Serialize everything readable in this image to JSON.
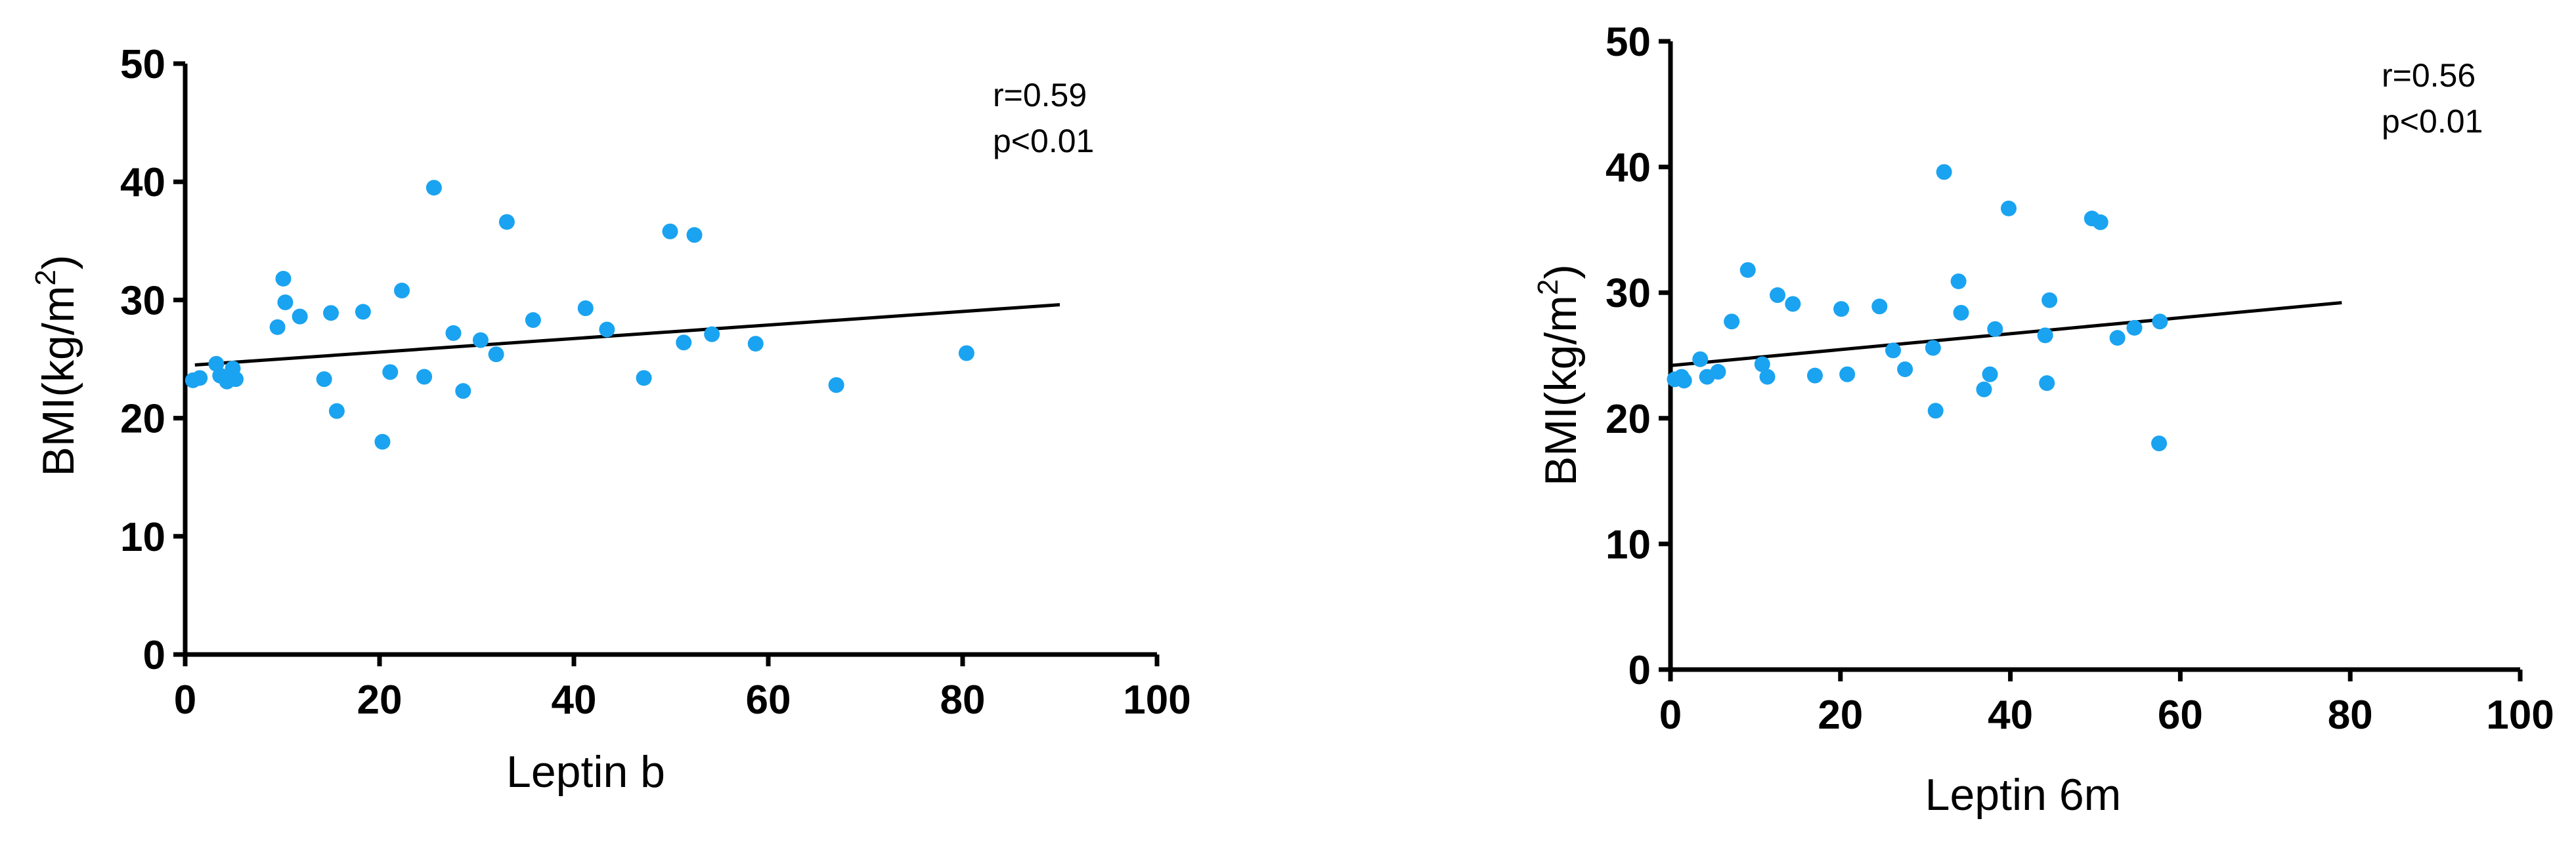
{
  "chart_data": [
    {
      "type": "scatter",
      "title": "",
      "xlabel": "Leptin b",
      "ylabel": "BMI(kg/m",
      "ylabel_superscript": "2",
      "ylabel_suffix": ")",
      "xlim": [
        0,
        100
      ],
      "ylim": [
        0,
        50
      ],
      "xticks": [
        0,
        20,
        40,
        60,
        80,
        100
      ],
      "yticks": [
        0,
        10,
        20,
        30,
        40,
        50
      ],
      "grid": false,
      "annotations": [
        "r=0.59",
        "p<0.01"
      ],
      "point_color": "#1aa3f0",
      "line_color": "#000000",
      "points": [
        {
          "x": 0.8,
          "y": 23.2
        },
        {
          "x": 1.5,
          "y": 23.4
        },
        {
          "x": 3.2,
          "y": 24.6
        },
        {
          "x": 3.6,
          "y": 23.6
        },
        {
          "x": 4.3,
          "y": 23.1
        },
        {
          "x": 4.9,
          "y": 24.2
        },
        {
          "x": 5.2,
          "y": 23.3
        },
        {
          "x": 9.5,
          "y": 27.7
        },
        {
          "x": 10.1,
          "y": 31.8
        },
        {
          "x": 10.3,
          "y": 29.8
        },
        {
          "x": 11.8,
          "y": 28.6
        },
        {
          "x": 14.3,
          "y": 23.3
        },
        {
          "x": 15.0,
          "y": 28.9
        },
        {
          "x": 15.6,
          "y": 20.6
        },
        {
          "x": 18.3,
          "y": 29.0
        },
        {
          "x": 20.3,
          "y": 18.0
        },
        {
          "x": 21.1,
          "y": 23.9
        },
        {
          "x": 22.3,
          "y": 30.8
        },
        {
          "x": 24.6,
          "y": 23.5
        },
        {
          "x": 25.6,
          "y": 39.5
        },
        {
          "x": 27.6,
          "y": 27.2
        },
        {
          "x": 28.6,
          "y": 22.3
        },
        {
          "x": 30.4,
          "y": 26.6
        },
        {
          "x": 32.0,
          "y": 25.4
        },
        {
          "x": 33.1,
          "y": 36.6
        },
        {
          "x": 35.8,
          "y": 28.3
        },
        {
          "x": 41.2,
          "y": 29.3
        },
        {
          "x": 43.4,
          "y": 27.5
        },
        {
          "x": 47.2,
          "y": 23.4
        },
        {
          "x": 49.9,
          "y": 35.8
        },
        {
          "x": 51.3,
          "y": 26.4
        },
        {
          "x": 52.4,
          "y": 35.5
        },
        {
          "x": 54.2,
          "y": 27.1
        },
        {
          "x": 58.7,
          "y": 26.3
        },
        {
          "x": 67.0,
          "y": 22.8
        },
        {
          "x": 80.4,
          "y": 25.5
        }
      ],
      "trend_line": {
        "x": [
          1,
          90
        ],
        "y": [
          24.5,
          29.6
        ]
      }
    },
    {
      "type": "scatter",
      "title": "",
      "xlabel": "Leptin 6m",
      "ylabel": "BMI(kg/m",
      "ylabel_superscript": "2",
      "ylabel_suffix": ")",
      "xlim": [
        0,
        100
      ],
      "ylim": [
        0,
        50
      ],
      "xticks": [
        0,
        20,
        40,
        60,
        80,
        100
      ],
      "yticks": [
        0,
        10,
        20,
        30,
        40,
        50
      ],
      "grid": false,
      "annotations": [
        "r=0.56",
        "p<0.01"
      ],
      "point_color": "#1aa3f0",
      "line_color": "#000000",
      "points": [
        {
          "x": 0.5,
          "y": 23.1
        },
        {
          "x": 1.3,
          "y": 23.3
        },
        {
          "x": 1.6,
          "y": 23.0
        },
        {
          "x": 3.5,
          "y": 24.7
        },
        {
          "x": 4.3,
          "y": 23.3
        },
        {
          "x": 5.6,
          "y": 23.7
        },
        {
          "x": 7.2,
          "y": 27.7
        },
        {
          "x": 9.1,
          "y": 31.8
        },
        {
          "x": 10.8,
          "y": 24.3
        },
        {
          "x": 11.4,
          "y": 23.3
        },
        {
          "x": 12.6,
          "y": 29.8
        },
        {
          "x": 14.4,
          "y": 29.1
        },
        {
          "x": 17.0,
          "y": 23.4
        },
        {
          "x": 20.1,
          "y": 28.7
        },
        {
          "x": 20.8,
          "y": 23.5
        },
        {
          "x": 24.6,
          "y": 28.9
        },
        {
          "x": 26.2,
          "y": 25.4
        },
        {
          "x": 27.6,
          "y": 23.9
        },
        {
          "x": 30.9,
          "y": 25.6
        },
        {
          "x": 31.2,
          "y": 20.6
        },
        {
          "x": 32.2,
          "y": 39.6
        },
        {
          "x": 33.9,
          "y": 30.9
        },
        {
          "x": 34.2,
          "y": 28.4
        },
        {
          "x": 36.9,
          "y": 22.3
        },
        {
          "x": 37.6,
          "y": 23.5
        },
        {
          "x": 38.2,
          "y": 27.1
        },
        {
          "x": 39.8,
          "y": 36.7
        },
        {
          "x": 44.1,
          "y": 26.6
        },
        {
          "x": 44.3,
          "y": 22.8
        },
        {
          "x": 44.6,
          "y": 29.4
        },
        {
          "x": 49.6,
          "y": 35.9
        },
        {
          "x": 50.6,
          "y": 35.6
        },
        {
          "x": 52.6,
          "y": 26.4
        },
        {
          "x": 54.6,
          "y": 27.2
        },
        {
          "x": 57.5,
          "y": 18.0
        },
        {
          "x": 57.6,
          "y": 27.7
        }
      ],
      "trend_line": {
        "x": [
          0,
          79
        ],
        "y": [
          24.2,
          29.2
        ]
      }
    }
  ]
}
